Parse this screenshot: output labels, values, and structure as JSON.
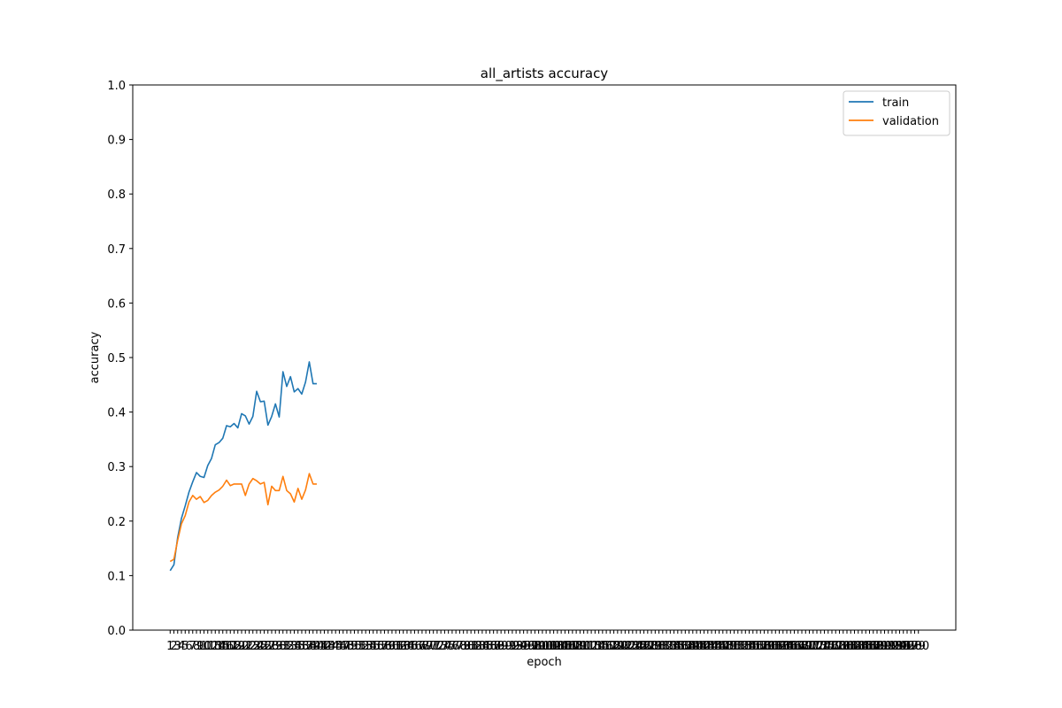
{
  "chart_data": {
    "type": "line",
    "title": "all_artists accuracy",
    "xlabel": "epoch",
    "ylabel": "accuracy",
    "xlim": [
      1,
      200
    ],
    "ylim": [
      0,
      1
    ],
    "x_ticks": [
      1,
      2,
      3,
      4,
      5,
      6,
      7,
      8,
      9,
      10,
      11,
      12,
      13,
      14,
      15,
      16,
      17,
      18,
      19,
      20,
      21,
      22,
      23,
      24,
      25,
      26,
      27,
      28,
      29,
      30,
      31,
      32,
      33,
      34,
      35,
      36,
      37,
      38,
      39,
      40,
      41,
      42,
      43,
      44,
      45,
      46,
      47,
      48,
      49,
      50,
      51,
      52,
      53,
      54,
      55,
      56,
      57,
      58,
      59,
      60,
      61,
      62,
      63,
      64,
      65,
      66,
      67,
      68,
      69,
      70,
      71,
      72,
      73,
      74,
      75,
      76,
      77,
      78,
      79,
      80,
      81,
      82,
      83,
      84,
      85,
      86,
      87,
      88,
      89,
      90,
      91,
      92,
      93,
      94,
      95,
      96,
      97,
      98,
      99,
      100,
      101,
      102,
      103,
      104,
      105,
      106,
      107,
      108,
      109,
      110,
      111,
      112,
      113,
      114,
      115,
      116,
      117,
      118,
      119,
      120,
      121,
      122,
      123,
      124,
      125,
      126,
      127,
      128,
      129,
      130,
      131,
      132,
      133,
      134,
      135,
      136,
      137,
      138,
      139,
      140,
      141,
      142,
      143,
      144,
      145,
      146,
      147,
      148,
      149,
      150,
      151,
      152,
      153,
      154,
      155,
      156,
      157,
      158,
      159,
      160,
      161,
      162,
      163,
      164,
      165,
      166,
      167,
      168,
      169,
      170,
      171,
      172,
      173,
      174,
      175,
      176,
      177,
      178,
      179,
      180,
      181,
      182,
      183,
      184,
      185,
      186,
      187,
      188,
      189,
      190,
      191,
      192,
      193,
      194,
      195,
      196,
      197,
      198,
      199,
      200
    ],
    "y_ticks": [
      "0.0",
      "0.1",
      "0.2",
      "0.3",
      "0.4",
      "0.5",
      "0.6",
      "0.7",
      "0.8",
      "0.9",
      "1.0"
    ],
    "y_tick_values": [
      0,
      0.1,
      0.2,
      0.3,
      0.4,
      0.5,
      0.6,
      0.7,
      0.8,
      0.9,
      1.0
    ],
    "legend_position": "top-right",
    "grid": false,
    "x": [
      1,
      2,
      3,
      4,
      5,
      6,
      7,
      8,
      9,
      10,
      11,
      12,
      13,
      14,
      15,
      16,
      17,
      18,
      19,
      20,
      21,
      22,
      23,
      24,
      25,
      26,
      27,
      28,
      29,
      30,
      31,
      32,
      33,
      34,
      35,
      36,
      37,
      38,
      39,
      40
    ],
    "series": [
      {
        "name": "train",
        "color": "#1f77b4",
        "values": [
          0.109,
          0.12,
          0.17,
          0.205,
          0.228,
          0.253,
          0.272,
          0.289,
          0.282,
          0.28,
          0.302,
          0.315,
          0.34,
          0.344,
          0.352,
          0.375,
          0.373,
          0.379,
          0.371,
          0.397,
          0.393,
          0.378,
          0.392,
          0.438,
          0.419,
          0.42,
          0.376,
          0.392,
          0.415,
          0.391,
          0.474,
          0.447,
          0.465,
          0.437,
          0.443,
          0.433,
          0.455,
          0.492,
          0.452,
          0.452
        ]
      },
      {
        "name": "validation",
        "color": "#ff7f0e",
        "values": [
          0.126,
          0.13,
          0.165,
          0.195,
          0.21,
          0.235,
          0.247,
          0.24,
          0.245,
          0.234,
          0.238,
          0.247,
          0.253,
          0.257,
          0.264,
          0.275,
          0.265,
          0.268,
          0.268,
          0.268,
          0.247,
          0.268,
          0.278,
          0.274,
          0.268,
          0.271,
          0.23,
          0.264,
          0.256,
          0.256,
          0.282,
          0.256,
          0.25,
          0.235,
          0.26,
          0.24,
          0.257,
          0.287,
          0.268,
          0.268
        ]
      }
    ]
  }
}
